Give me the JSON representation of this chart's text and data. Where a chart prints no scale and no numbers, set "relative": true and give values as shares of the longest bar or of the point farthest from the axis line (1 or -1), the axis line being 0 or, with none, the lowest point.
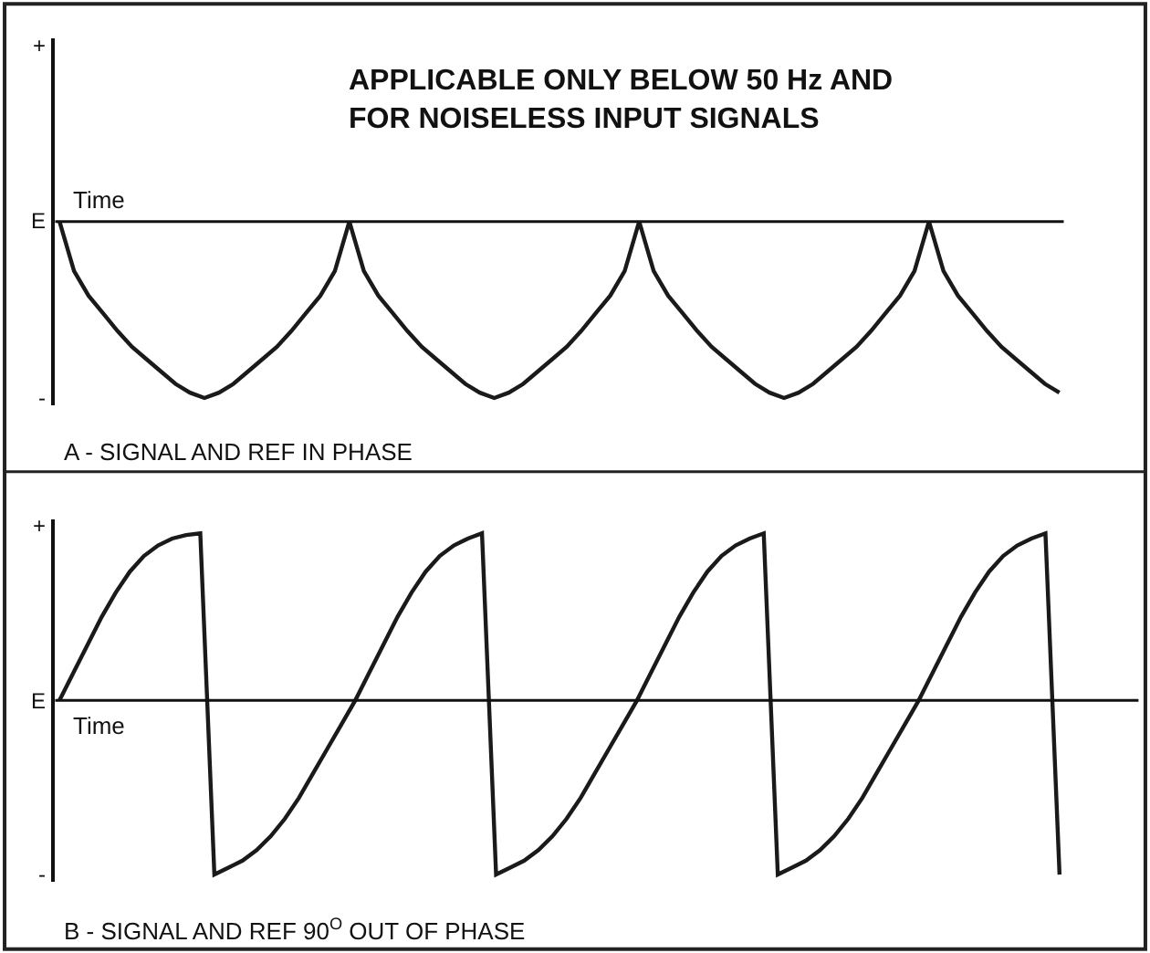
{
  "chart_data": [
    {
      "type": "line",
      "title": "APPLICABLE ONLY BELOW 50 Hz AND\nFOR NOISELESS INPUT SIGNALS",
      "xlabel": "Time",
      "relative": true,
      "marker": "none",
      "line_style": "solid",
      "categories": [
        null,
        null,
        null,
        null,
        null,
        null,
        null,
        null,
        null,
        null,
        null,
        null,
        null,
        null,
        null,
        null,
        null,
        null,
        null,
        null,
        null,
        null,
        null,
        null,
        null,
        null,
        null,
        null,
        null,
        null,
        null,
        null,
        null,
        null,
        null,
        null,
        null,
        null,
        null,
        null,
        null,
        null,
        null,
        null,
        null,
        null,
        null,
        null,
        null,
        null,
        null,
        null,
        null,
        null,
        null,
        null,
        null,
        null,
        null,
        null,
        null,
        null,
        null,
        null,
        null,
        null,
        null,
        null,
        null,
        null
      ],
      "series": [
        {
          "color": "#1a1a1a",
          "values": [
            0,
            -0.28,
            -0.42,
            -0.52,
            -0.62,
            -0.71,
            -0.78,
            -0.85,
            -0.92,
            -0.97,
            -1,
            -0.97,
            -0.92,
            -0.85,
            -0.78,
            -0.71,
            -0.62,
            -0.52,
            -0.42,
            -0.28,
            0,
            -0.28,
            -0.42,
            -0.52,
            -0.62,
            -0.71,
            -0.78,
            -0.85,
            -0.92,
            -0.97,
            -1,
            -0.97,
            -0.92,
            -0.85,
            -0.78,
            -0.71,
            -0.62,
            -0.52,
            -0.42,
            -0.28,
            0,
            -0.28,
            -0.42,
            -0.52,
            -0.62,
            -0.71,
            -0.78,
            -0.85,
            -0.92,
            -0.97,
            -1,
            -0.97,
            -0.92,
            -0.85,
            -0.78,
            -0.71,
            -0.62,
            -0.52,
            -0.42,
            -0.28,
            0,
            -0.28,
            -0.42,
            -0.52,
            -0.62,
            -0.71,
            -0.78,
            -0.85,
            -0.92,
            -0.97
          ]
        }
      ],
      "annotations": [
        "+",
        "E",
        "-",
        "A - SIGNAL AND REF IN PHASE"
      ]
    },
    {
      "type": "line",
      "xlabel": "Time",
      "relative": true,
      "marker": "none",
      "line_style": "solid",
      "categories": [
        null,
        null,
        null,
        null,
        null,
        null,
        null,
        null,
        null,
        null,
        null,
        null,
        null,
        null,
        null,
        null,
        null,
        null,
        null,
        null,
        null,
        null,
        null,
        null,
        null,
        null,
        null,
        null,
        null,
        null,
        null,
        null,
        null,
        null,
        null,
        null,
        null,
        null,
        null,
        null,
        null,
        null,
        null,
        null,
        null,
        null,
        null,
        null,
        null,
        null,
        null,
        null,
        null,
        null,
        null,
        null,
        null,
        null,
        null,
        null,
        null,
        null,
        null,
        null,
        null,
        null,
        null,
        null,
        null,
        null,
        null,
        null
      ],
      "series": [
        {
          "color": "#1a1a1a",
          "values": [
            0,
            0.16,
            0.32,
            0.48,
            0.62,
            0.74,
            0.83,
            0.89,
            0.93,
            0.95,
            0.96,
            -1,
            -0.96,
            -0.92,
            -0.86,
            -0.78,
            -0.68,
            -0.56,
            -0.42,
            -0.28,
            -0.14,
            0,
            0.16,
            0.32,
            0.48,
            0.62,
            0.74,
            0.83,
            0.89,
            0.93,
            0.96,
            -1,
            -0.96,
            -0.92,
            -0.86,
            -0.78,
            -0.68,
            -0.56,
            -0.42,
            -0.28,
            -0.14,
            0,
            0.16,
            0.32,
            0.48,
            0.62,
            0.74,
            0.83,
            0.89,
            0.93,
            0.96,
            -1,
            -0.96,
            -0.92,
            -0.86,
            -0.78,
            -0.68,
            -0.56,
            -0.42,
            -0.28,
            -0.14,
            0,
            0.16,
            0.32,
            0.48,
            0.62,
            0.74,
            0.83,
            0.89,
            0.93,
            0.96,
            -1
          ]
        }
      ],
      "annotations": [
        "+",
        "E",
        "-",
        "B - SIGNAL AND REF 90$^{O}$ OUT OF PHASE"
      ]
    }
  ]
}
